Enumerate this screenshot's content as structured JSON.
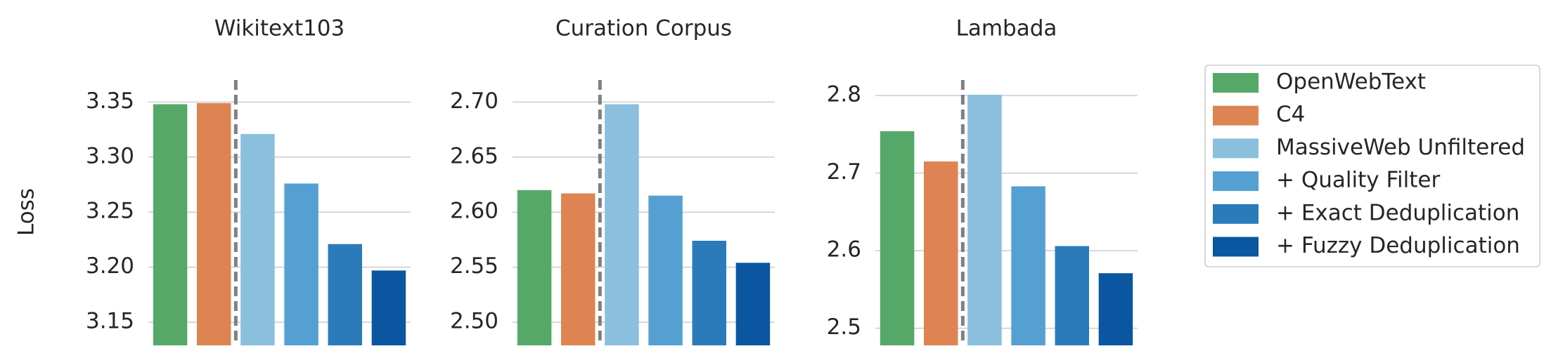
{
  "chart_data": {
    "type": "bar",
    "ylabel": "Loss",
    "grid": true,
    "legend": "right",
    "categories": [
      "Wikitext103",
      "Curation Corpus",
      "Lambada"
    ],
    "series": [
      {
        "name": "OpenWebText",
        "color": "#55a868",
        "values": [
          3.348,
          2.62,
          2.754
        ]
      },
      {
        "name": "C4",
        "color": "#dd8452",
        "values": [
          3.349,
          2.617,
          2.715
        ]
      },
      {
        "name": "MassiveWeb Unfiltered",
        "color": "#8bbfde",
        "values": [
          3.321,
          2.698,
          2.801
        ]
      },
      {
        "name": "+ Quality Filter",
        "color": "#55a0d2",
        "values": [
          3.276,
          2.615,
          2.683
        ]
      },
      {
        "name": "+ Exact Deduplication",
        "color": "#2b7bba",
        "values": [
          3.221,
          2.574,
          2.606
        ]
      },
      {
        "name": "+ Fuzzy Deduplication",
        "color": "#0a56a0",
        "values": [
          3.197,
          2.554,
          2.571
        ]
      }
    ],
    "panels": [
      {
        "ylim": [
          3.129,
          3.37
        ],
        "yticks": [
          3.15,
          {
            "value": 3.2,
            "label": "3.20"
          },
          3.25,
          {
            "value": 3.3,
            "label": "3.30"
          },
          3.35
        ]
      },
      {
        "ylim": [
          2.479,
          2.72
        ],
        "yticks": [
          {
            "value": 2.5,
            "label": "2.50"
          },
          2.55,
          {
            "value": 2.6,
            "label": "2.60"
          },
          2.65,
          {
            "value": 2.7,
            "label": "2.70"
          }
        ]
      },
      {
        "ylim": [
          2.478,
          2.82
        ],
        "yticks": [
          2.5,
          2.6,
          2.7,
          2.8
        ]
      }
    ]
  }
}
